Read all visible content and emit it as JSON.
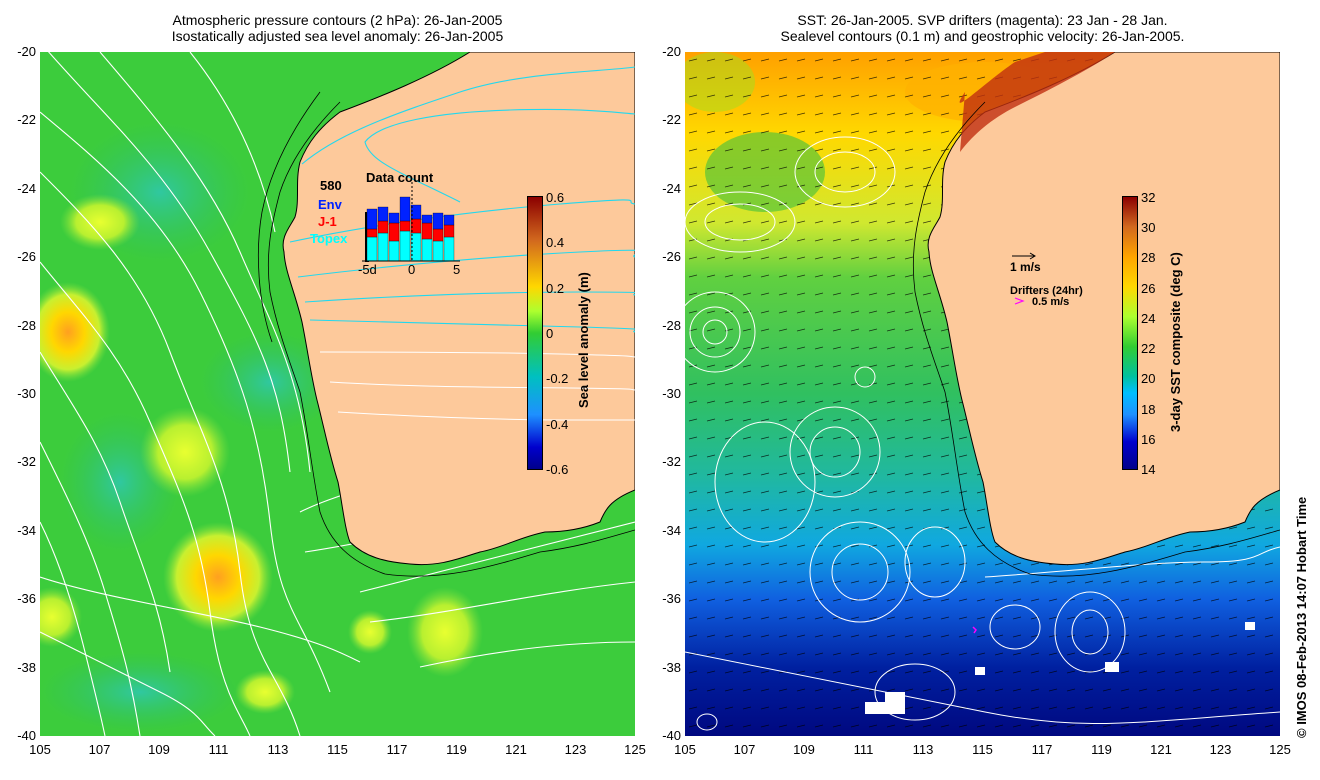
{
  "left_panel": {
    "title_line1": "Atmospheric pressure contours (2 hPa): 26-Jan-2005",
    "title_line2": "Isostatically adjusted sea level anomaly: 26-Jan-2005",
    "colorbar": {
      "label": "Sea level anomaly (m)",
      "ticks": [
        "0.6",
        "0.4",
        "0.2",
        "0",
        "-0.2",
        "-0.4",
        "-0.6"
      ],
      "colors": [
        "#8b0000",
        "#d2691e",
        "#ffd700",
        "#adff2f",
        "#32cd32",
        "#00c0c0",
        "#1e90ff",
        "#0000cd",
        "#00008b"
      ]
    },
    "inset": {
      "title": "Data count",
      "max_count": "580",
      "series_labels": [
        "Env",
        "J-1",
        "Topex"
      ],
      "series_colors": [
        "#0022ff",
        "#ff0000",
        "#00ffff"
      ],
      "x_ticks": [
        "-5d",
        "0",
        "5"
      ]
    }
  },
  "right_panel": {
    "title_line1": "SST: 26-Jan-2005. SVP drifters (magenta): 23 Jan - 28 Jan.",
    "title_line2": "Sealevel contours (0.1 m) and geostrophic velocity: 26-Jan-2005.",
    "colorbar": {
      "label": "3-day SST composite (deg C)",
      "ticks": [
        "32",
        "30",
        "28",
        "26",
        "24",
        "22",
        "20",
        "18",
        "16",
        "14"
      ],
      "colors": [
        "#8b0000",
        "#d2691e",
        "#ffa500",
        "#ffd700",
        "#adff2f",
        "#32cd32",
        "#00c0a0",
        "#00bfff",
        "#1e90ff",
        "#0000cd",
        "#00008b"
      ]
    },
    "velocity_legend": "1 m/s",
    "drifters_legend": "Drifters (24hr)",
    "drifters_speed": "0.5 m/s"
  },
  "axes": {
    "y_ticks": [
      "-20",
      "-22",
      "-24",
      "-26",
      "-28",
      "-30",
      "-32",
      "-34",
      "-36",
      "-38",
      "-40"
    ],
    "x_ticks": [
      "105",
      "107",
      "109",
      "111",
      "113",
      "115",
      "117",
      "119",
      "121",
      "123",
      "125"
    ]
  },
  "credit": "© IMOS 08-Feb-2013 14:07 Hobart Time",
  "colors": {
    "land": "#fdc99b",
    "ocean_green": "#2ecc40"
  }
}
